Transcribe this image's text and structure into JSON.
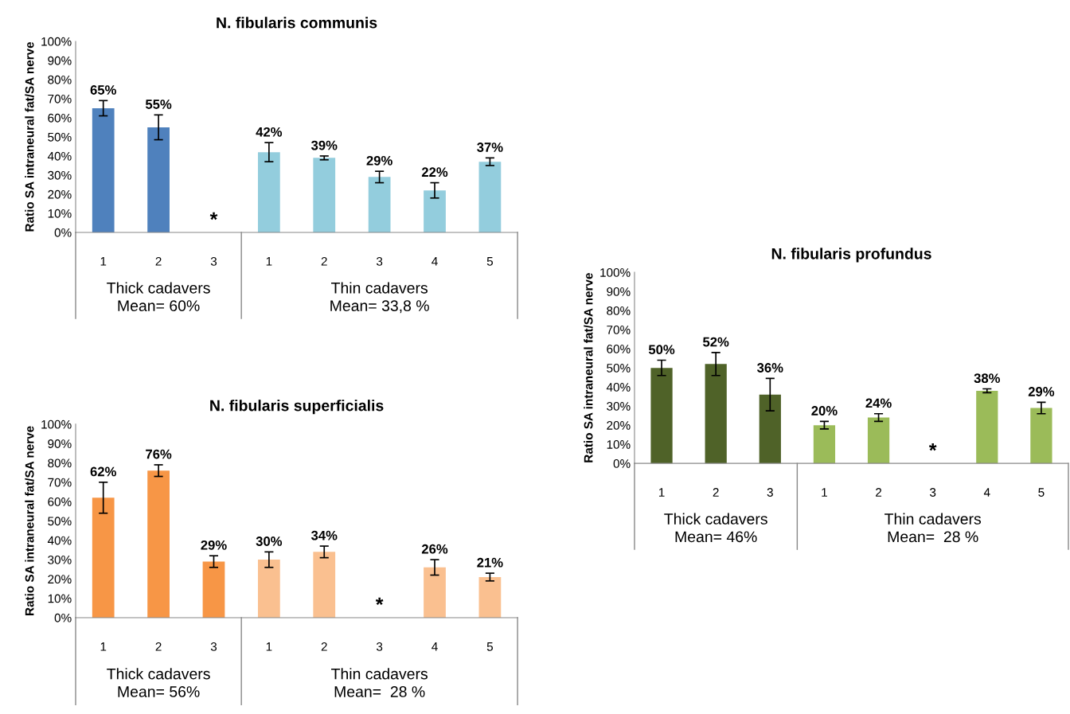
{
  "chart_data": [
    {
      "type": "bar",
      "title": "N. fibularis communis",
      "ylabel": "Ratio SA intraneural fat/SA nerve",
      "categories": [
        "1",
        "2",
        "3",
        "1",
        "2",
        "3",
        "4",
        "5"
      ],
      "values": [
        65,
        55,
        null,
        42,
        39,
        29,
        22,
        37
      ],
      "errors": [
        4,
        6.5,
        null,
        5,
        1,
        3,
        4,
        2
      ],
      "value_labels": [
        "65%",
        "55%",
        "*",
        "42%",
        "39%",
        "29%",
        "22%",
        "37%"
      ],
      "colors": [
        "#4f81bd",
        "#4f81bd",
        "#4f81bd",
        "#93cddd",
        "#93cddd",
        "#93cddd",
        "#93cddd",
        "#93cddd"
      ],
      "ylim": [
        0,
        100
      ],
      "yticks": [
        {
          "value": 0,
          "label": "0%"
        },
        {
          "value": 10,
          "label": "10%"
        },
        {
          "value": 20,
          "label": "20%"
        },
        {
          "value": 30,
          "label": "30%"
        },
        {
          "value": 40,
          "label": "40%"
        },
        {
          "value": 50,
          "label": "50%"
        },
        {
          "value": 60,
          "label": "60%"
        },
        {
          "value": 70,
          "label": "70%"
        },
        {
          "value": 80,
          "label": "80%"
        },
        {
          "value": 90,
          "label": "90%"
        },
        {
          "value": 100,
          "label": "100%"
        }
      ],
      "annotations": [
        "Thick cadavers\nMean= 60%",
        "Thin cadavers\nMean= 33,8 %"
      ],
      "grid": false,
      "legend": false
    },
    {
      "type": "bar",
      "title": "N. fibularis superficialis",
      "ylabel": "Ratio SA intraneural fat/SA nerve",
      "categories": [
        "1",
        "2",
        "3",
        "1",
        "2",
        "3",
        "4",
        "5"
      ],
      "values": [
        62,
        76,
        29,
        30,
        34,
        null,
        26,
        21
      ],
      "errors": [
        8,
        3,
        3,
        4,
        3,
        null,
        4,
        2
      ],
      "value_labels": [
        "62%",
        "76%",
        "29%",
        "30%",
        "34%",
        "*",
        "26%",
        "21%"
      ],
      "colors": [
        "#f79646",
        "#f79646",
        "#f79646",
        "#fac090",
        "#fac090",
        "#fac090",
        "#fac090",
        "#fac090"
      ],
      "ylim": [
        0,
        100
      ],
      "yticks": [
        {
          "value": 0,
          "label": "0%"
        },
        {
          "value": 10,
          "label": "10%"
        },
        {
          "value": 20,
          "label": "20%"
        },
        {
          "value": 30,
          "label": "30%"
        },
        {
          "value": 40,
          "label": "40%"
        },
        {
          "value": 50,
          "label": "50%"
        },
        {
          "value": 60,
          "label": "60%"
        },
        {
          "value": 70,
          "label": "70%"
        },
        {
          "value": 80,
          "label": "80%"
        },
        {
          "value": 90,
          "label": "90%"
        },
        {
          "value": 100,
          "label": "100%"
        }
      ],
      "annotations": [
        "Thick cadavers\nMean= 56%",
        "Thin cadavers\nMean=  28 %"
      ],
      "grid": false,
      "legend": false
    },
    {
      "type": "bar",
      "title": "N. fibularis profundus",
      "ylabel": "Ratio SA intraneural fat/SA nerve",
      "categories": [
        "1",
        "2",
        "3",
        "1",
        "2",
        "3",
        "4",
        "5"
      ],
      "values": [
        50,
        52,
        36,
        20,
        24,
        null,
        38,
        29
      ],
      "errors": [
        4,
        6,
        8.5,
        2,
        2,
        null,
        1,
        3
      ],
      "value_labels": [
        "50%",
        "52%",
        "36%",
        "20%",
        "24%",
        "*",
        "38%",
        "29%"
      ],
      "colors": [
        "#4f6228",
        "#4f6228",
        "#4f6228",
        "#9bbb59",
        "#9bbb59",
        "#9bbb59",
        "#9bbb59",
        "#9bbb59"
      ],
      "ylim": [
        0,
        100
      ],
      "yticks": [
        {
          "value": 0,
          "label": "0%"
        },
        {
          "value": 10,
          "label": "10%"
        },
        {
          "value": 20,
          "label": "20%"
        },
        {
          "value": 30,
          "label": "30%"
        },
        {
          "value": 40,
          "label": "40%"
        },
        {
          "value": 50,
          "label": "50%"
        },
        {
          "value": 60,
          "label": "60%"
        },
        {
          "value": 70,
          "label": "70%"
        },
        {
          "value": 80,
          "label": "80%"
        },
        {
          "value": 90,
          "label": "90%"
        },
        {
          "value": 100,
          "label": "100%"
        }
      ],
      "annotations": [
        "Thick cadavers\nMean= 46%",
        "Thin cadavers\nMean=  28 %"
      ],
      "grid": false,
      "legend": false
    }
  ]
}
